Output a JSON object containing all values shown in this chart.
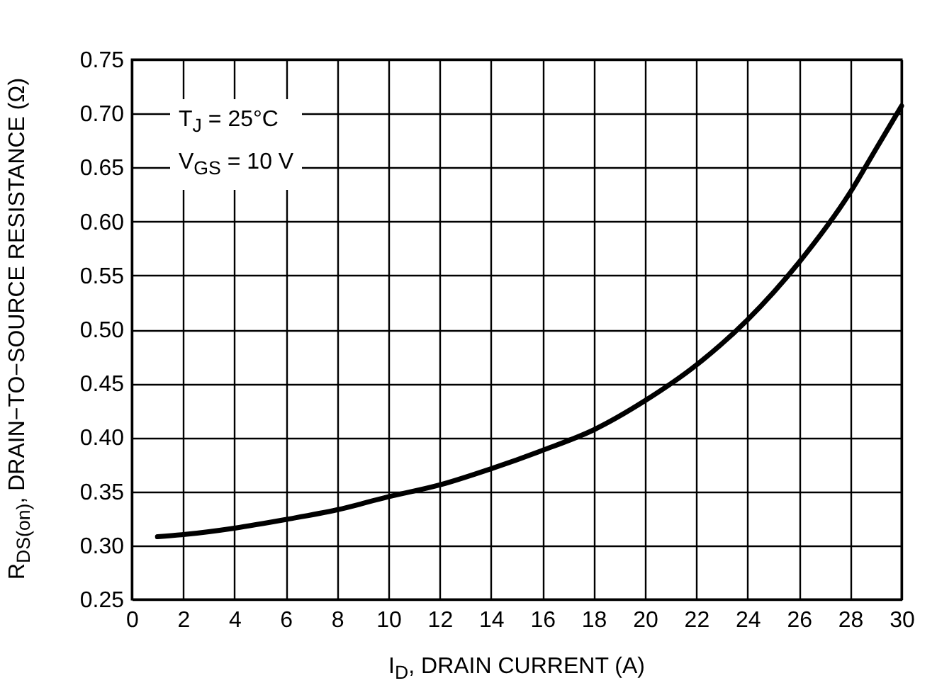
{
  "chart_data": {
    "type": "line",
    "xlabel": "I$_{D}$, DRAIN CURRENT (A)",
    "ylabel": "R$_{DS(on)}$, DRAIN−TO−SOURCE RESISTANCE (Ω)",
    "annotations": [
      "T$_{J}$ = 25°C",
      "V$_{GS}$ = 10 V"
    ],
    "x": [
      1,
      2,
      4,
      6,
      8,
      10,
      12,
      14,
      16,
      18,
      20,
      22,
      24,
      26,
      28,
      29,
      30
    ],
    "series": [
      {
        "color": "#000000",
        "values": [
          0.308,
          0.31,
          0.316,
          0.324,
          0.333,
          0.345,
          0.356,
          0.371,
          0.388,
          0.407,
          0.434,
          0.467,
          0.509,
          0.562,
          0.627,
          0.667,
          0.707
        ]
      }
    ],
    "xlim": [
      0,
      30
    ],
    "xticks": [
      0,
      2,
      4,
      6,
      8,
      10,
      12,
      14,
      16,
      18,
      20,
      22,
      24,
      26,
      28,
      30
    ],
    "ylim": [
      0.25,
      0.75
    ],
    "yticks": [
      0.25,
      {
        "value": 0.3,
        "label": "0.30"
      },
      0.35,
      {
        "value": 0.4,
        "label": "0.40"
      },
      0.45,
      {
        "value": 0.5,
        "label": "0.50"
      },
      0.55,
      {
        "value": 0.6,
        "label": "0.60"
      },
      0.65,
      {
        "value": 0.7,
        "label": "0.70"
      },
      0.75
    ],
    "grid": true,
    "legend": false,
    "marker": "none",
    "line_style": "solid"
  }
}
